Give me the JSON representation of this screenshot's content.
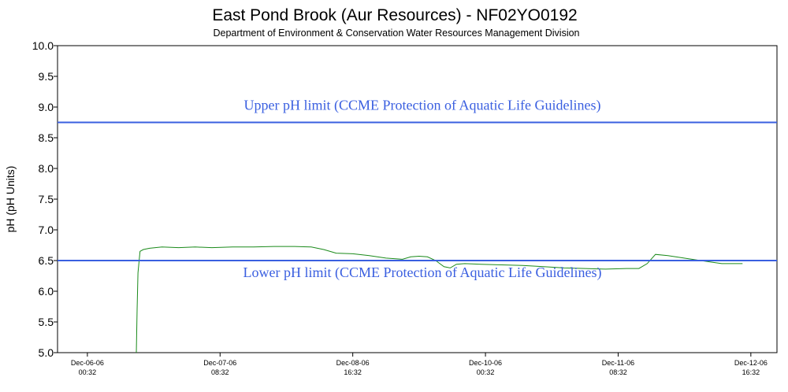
{
  "chart_data": {
    "type": "line",
    "title": "East Pond Brook (Aur Resources) - NF02YO0192",
    "subtitle": "Department of Environment & Conservation Water Resources Management Division",
    "ylabel": "pH (pH Units)",
    "xlabel": "",
    "ylim": [
      5.0,
      10.0
    ],
    "y_ticks": [
      5.0,
      5.5,
      6.0,
      6.5,
      7.0,
      7.5,
      8.0,
      8.5,
      9.0,
      9.5,
      10.0
    ],
    "x_ticks": [
      {
        "date": "Dec-06-06",
        "time": "00:32",
        "hours": 0
      },
      {
        "date": "Dec-07-06",
        "time": "08:32",
        "hours": 32
      },
      {
        "date": "Dec-08-06",
        "time": "16:32",
        "hours": 64
      },
      {
        "date": "Dec-10-06",
        "time": "00:32",
        "hours": 96
      },
      {
        "date": "Dec-11-06",
        "time": "08:32",
        "hours": 128
      },
      {
        "date": "Dec-12-06",
        "time": "16:32",
        "hours": 160
      }
    ],
    "xlim_hours": [
      -7.2,
      166.3
    ],
    "grid": false,
    "reference_lines": [
      {
        "label": "Upper pH limit (CCME Protection of Aquatic Life Guidelines)",
        "y": 8.75,
        "color": "#3a5fe0"
      },
      {
        "label": "Lower pH limit (CCME Protection of Aquatic Life Guidelines)",
        "y": 6.5,
        "color": "#3a5fe0"
      }
    ],
    "series": [
      {
        "color": "#1a8a1a",
        "points": [
          [
            11.8,
            4.95
          ],
          [
            12.0,
            5.7
          ],
          [
            12.2,
            6.3
          ],
          [
            12.7,
            6.65
          ],
          [
            13.5,
            6.68
          ],
          [
            15,
            6.7
          ],
          [
            18,
            6.72
          ],
          [
            22,
            6.71
          ],
          [
            26,
            6.72
          ],
          [
            30,
            6.71
          ],
          [
            35,
            6.72
          ],
          [
            40,
            6.72
          ],
          [
            45,
            6.73
          ],
          [
            50,
            6.73
          ],
          [
            54,
            6.72
          ],
          [
            57,
            6.68
          ],
          [
            60,
            6.62
          ],
          [
            64,
            6.61
          ],
          [
            68,
            6.58
          ],
          [
            72,
            6.54
          ],
          [
            76,
            6.52
          ],
          [
            78,
            6.56
          ],
          [
            80,
            6.57
          ],
          [
            82,
            6.56
          ],
          [
            84,
            6.5
          ],
          [
            86,
            6.4
          ],
          [
            87.5,
            6.38
          ],
          [
            89,
            6.44
          ],
          [
            91,
            6.45
          ],
          [
            95,
            6.44
          ],
          [
            100,
            6.43
          ],
          [
            105,
            6.42
          ],
          [
            110,
            6.4
          ],
          [
            115,
            6.38
          ],
          [
            120,
            6.37
          ],
          [
            125,
            6.36
          ],
          [
            130,
            6.37
          ],
          [
            133,
            6.37
          ],
          [
            135,
            6.45
          ],
          [
            137,
            6.6
          ],
          [
            140,
            6.58
          ],
          [
            145,
            6.53
          ],
          [
            150,
            6.48
          ],
          [
            153,
            6.45
          ],
          [
            158,
            6.45
          ]
        ]
      }
    ]
  }
}
